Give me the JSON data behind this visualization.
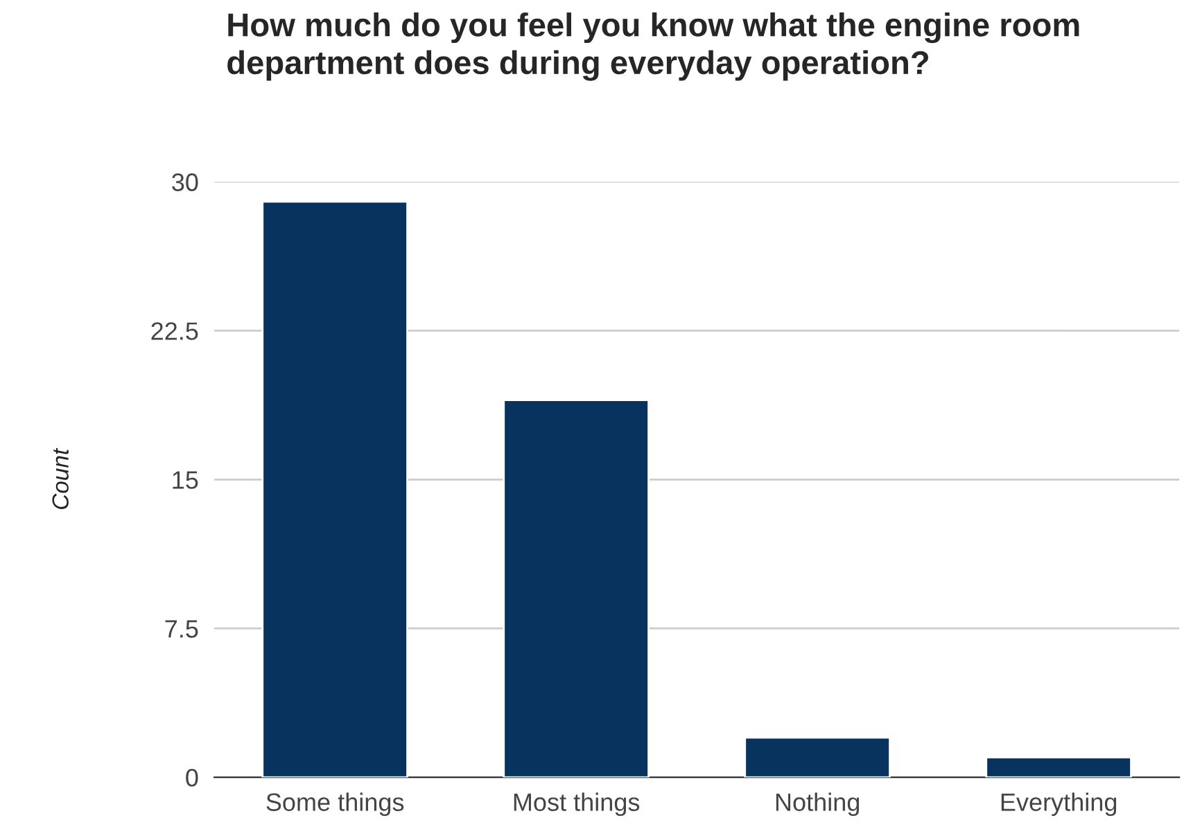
{
  "chart_data": {
    "type": "bar",
    "title": "How much do you feel you know what the engine room department does during everyday operation?",
    "ylabel": "Count",
    "categories": [
      "Some things",
      "Most things",
      "Nothing",
      "Everything"
    ],
    "values": [
      29,
      19,
      2,
      1
    ],
    "color": "#08335e",
    "ylim": [
      0,
      30
    ],
    "yticks": [
      0,
      {
        "value": 7.5,
        "label": "7.5"
      },
      15,
      {
        "value": 22.5,
        "label": "22.5"
      },
      30
    ],
    "grid": "y",
    "legend": false
  }
}
